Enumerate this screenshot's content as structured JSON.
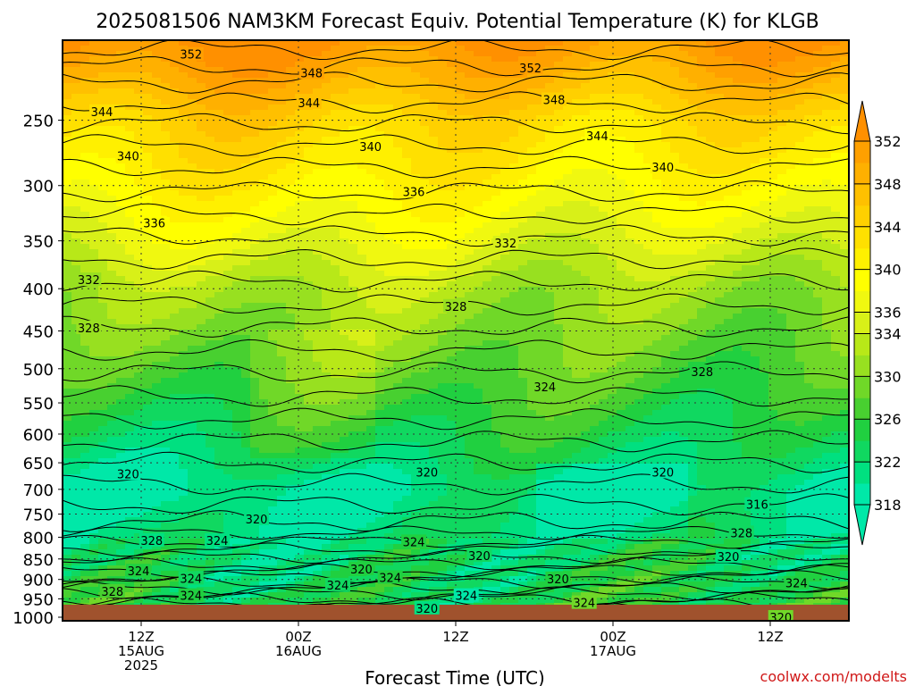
{
  "chart_data": {
    "type": "heatmap",
    "title": "2025081506 NAM3KM Forecast Equiv. Potential Temperature (K) for KLGB",
    "xlabel": "Forecast Time (UTC)",
    "credit": "coolwx.com/modelts",
    "y_axis": {
      "quantity": "pressure (hPa)",
      "scale": "log",
      "inverted": true,
      "ticks": [
        250,
        300,
        350,
        400,
        450,
        500,
        550,
        600,
        650,
        700,
        750,
        800,
        850,
        900,
        950,
        1000
      ],
      "ylim": [
        1010,
        200
      ]
    },
    "x_axis": {
      "unit": "hours since 2025-08-15 06Z",
      "range": [
        0,
        60
      ],
      "ticks": [
        {
          "hour": 6,
          "lines": [
            "12Z",
            "15AUG",
            "2025"
          ]
        },
        {
          "hour": 18,
          "lines": [
            "00Z",
            "16AUG"
          ]
        },
        {
          "hour": 30,
          "lines": [
            "12Z"
          ]
        },
        {
          "hour": 42,
          "lines": [
            "00Z",
            "17AUG"
          ]
        },
        {
          "hour": 54,
          "lines": [
            "12Z"
          ]
        }
      ]
    },
    "grid": true,
    "colorbar": {
      "placement": "right",
      "levels": [
        318,
        320,
        322,
        324,
        326,
        328,
        330,
        332,
        334,
        336,
        338,
        340,
        342,
        344,
        346,
        348,
        350,
        352
      ],
      "tick_labels": [
        318,
        322,
        326,
        330,
        334,
        336,
        340,
        344,
        348,
        352
      ],
      "colors": [
        "#00e8a8",
        "#00e080",
        "#10d860",
        "#20d040",
        "#48d030",
        "#70d828",
        "#98e020",
        "#b8e818",
        "#d8f018",
        "#f0f810",
        "#ffff00",
        "#fff000",
        "#ffe000",
        "#ffd000",
        "#ffc000",
        "#ffb000",
        "#ffa000",
        "#ff9000"
      ]
    },
    "contour_labels": [
      {
        "text": "352",
        "hour": 9.8,
        "p": 208
      },
      {
        "text": "352",
        "hour": 35.7,
        "p": 216
      },
      {
        "text": "348",
        "hour": 19.0,
        "p": 219
      },
      {
        "text": "348",
        "hour": 37.5,
        "p": 236
      },
      {
        "text": "344",
        "hour": 3.0,
        "p": 244
      },
      {
        "text": "344",
        "hour": 18.8,
        "p": 238
      },
      {
        "text": "344",
        "hour": 40.8,
        "p": 261
      },
      {
        "text": "340",
        "hour": 5.0,
        "p": 276
      },
      {
        "text": "340",
        "hour": 23.5,
        "p": 269
      },
      {
        "text": "340",
        "hour": 45.8,
        "p": 285
      },
      {
        "text": "336",
        "hour": 7.0,
        "p": 333
      },
      {
        "text": "336",
        "hour": 26.8,
        "p": 305
      },
      {
        "text": "332",
        "hour": 2.0,
        "p": 390
      },
      {
        "text": "332",
        "hour": 33.8,
        "p": 352
      },
      {
        "text": "328",
        "hour": 2.0,
        "p": 446
      },
      {
        "text": "328",
        "hour": 30.0,
        "p": 420
      },
      {
        "text": "328",
        "hour": 48.8,
        "p": 504
      },
      {
        "text": "324",
        "hour": 36.8,
        "p": 526
      },
      {
        "text": "320",
        "hour": 5.0,
        "p": 670
      },
      {
        "text": "320",
        "hour": 14.8,
        "p": 760
      },
      {
        "text": "320",
        "hour": 27.8,
        "p": 667
      },
      {
        "text": "320",
        "hour": 45.8,
        "p": 667
      },
      {
        "text": "316",
        "hour": 53.0,
        "p": 730
      },
      {
        "text": "328",
        "hour": 6.8,
        "p": 807
      },
      {
        "text": "324",
        "hour": 11.8,
        "p": 807
      },
      {
        "text": "324",
        "hour": 26.8,
        "p": 810
      },
      {
        "text": "320",
        "hour": 31.8,
        "p": 842
      },
      {
        "text": "328",
        "hour": 51.8,
        "p": 790
      },
      {
        "text": "320",
        "hour": 50.8,
        "p": 844
      },
      {
        "text": "324",
        "hour": 5.8,
        "p": 879
      },
      {
        "text": "320",
        "hour": 22.8,
        "p": 874
      },
      {
        "text": "324",
        "hour": 25.0,
        "p": 895
      },
      {
        "text": "324",
        "hour": 9.8,
        "p": 897
      },
      {
        "text": "324",
        "hour": 21.0,
        "p": 914
      },
      {
        "text": "320",
        "hour": 37.8,
        "p": 898
      },
      {
        "text": "328",
        "hour": 3.8,
        "p": 930
      },
      {
        "text": "324",
        "hour": 9.8,
        "p": 941
      },
      {
        "text": "324",
        "hour": 30.8,
        "p": 941
      },
      {
        "text": "324",
        "hour": 56.0,
        "p": 909
      },
      {
        "text": "320",
        "hour": 27.8,
        "p": 975
      },
      {
        "text": "324",
        "hour": 39.8,
        "p": 960
      },
      {
        "text": "320",
        "hour": 54.8,
        "p": 1000
      }
    ]
  }
}
